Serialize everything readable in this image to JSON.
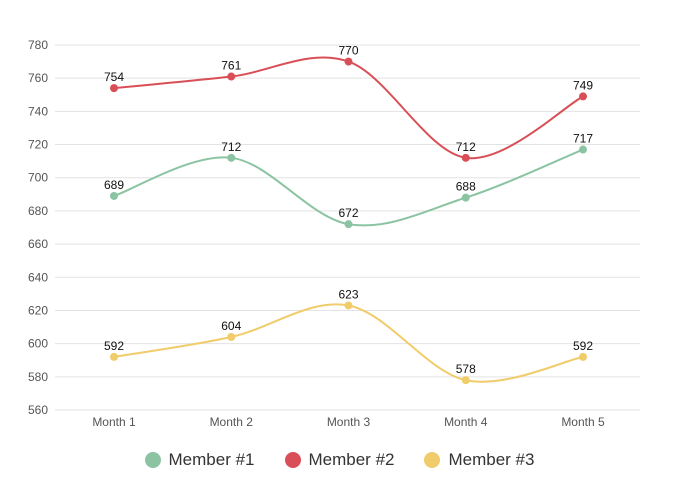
{
  "chart_data": {
    "type": "line",
    "categories": [
      "Month 1",
      "Month 2",
      "Month 3",
      "Month 4",
      "Month 5"
    ],
    "ylim": [
      560,
      780
    ],
    "yticks": [
      560,
      580,
      600,
      620,
      640,
      660,
      680,
      700,
      720,
      740,
      760,
      780
    ],
    "grid": true,
    "legend_position": "bottom",
    "series": [
      {
        "name": "Member #1",
        "color": "#8cc4a3",
        "values": [
          689,
          712,
          672,
          688,
          717
        ]
      },
      {
        "name": "Member #2",
        "color": "#d94f57",
        "values": [
          754,
          761,
          770,
          712,
          749
        ]
      },
      {
        "name": "Member #3",
        "color": "#f0cc6a",
        "values": [
          592,
          604,
          623,
          578,
          592
        ]
      }
    ]
  }
}
